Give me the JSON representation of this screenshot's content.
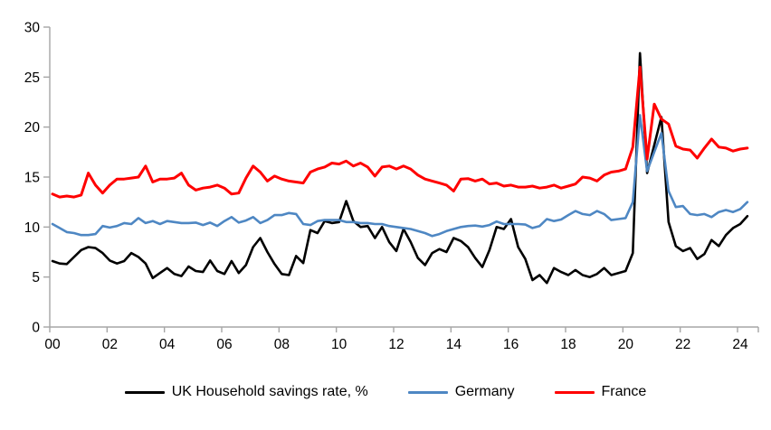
{
  "chart_data": {
    "type": "line",
    "title": "",
    "xlabel": "",
    "ylabel": "",
    "grid": false,
    "legend_position": "bottom",
    "axis_color": "#a6a6a6",
    "tick_label_color": "#000000",
    "ylim": [
      0,
      30
    ],
    "xlim": [
      2000,
      2024.6
    ],
    "yticks": [
      0,
      5,
      10,
      15,
      20,
      25,
      30
    ],
    "xticks": [
      {
        "year": 2000,
        "label": "00"
      },
      {
        "year": 2002,
        "label": "02"
      },
      {
        "year": 2004,
        "label": "04"
      },
      {
        "year": 2006,
        "label": "06"
      },
      {
        "year": 2008,
        "label": "08"
      },
      {
        "year": 2010,
        "label": "10"
      },
      {
        "year": 2012,
        "label": "12"
      },
      {
        "year": 2014,
        "label": "14"
      },
      {
        "year": 2016,
        "label": "16"
      },
      {
        "year": 2018,
        "label": "18"
      },
      {
        "year": 2020,
        "label": "20"
      },
      {
        "year": 2022,
        "label": "22"
      },
      {
        "year": 2024,
        "label": "24"
      }
    ],
    "x_start": 2000,
    "x_step": 0.25,
    "x_note": "quarterly data, 2000Q1 - 2024Q2",
    "series": [
      {
        "name": "UK Household savings rate, %",
        "color": "#000000",
        "width": 2.6,
        "values": [
          6.6,
          6.35,
          6.3,
          7.0,
          7.7,
          8.0,
          7.9,
          7.4,
          6.65,
          6.35,
          6.6,
          7.4,
          7.0,
          6.35,
          4.9,
          5.4,
          5.9,
          5.3,
          5.1,
          6.05,
          5.6,
          5.5,
          6.65,
          5.6,
          5.3,
          6.6,
          5.4,
          6.2,
          8.0,
          8.9,
          7.5,
          6.3,
          5.3,
          5.2,
          7.1,
          6.4,
          9.7,
          9.4,
          10.6,
          10.4,
          10.5,
          12.6,
          10.6,
          10.0,
          10.1,
          8.9,
          10.0,
          8.5,
          7.6,
          9.8,
          8.5,
          6.9,
          6.2,
          7.4,
          7.8,
          7.5,
          8.9,
          8.6,
          8.0,
          6.9,
          6.0,
          7.7,
          10.0,
          9.8,
          10.8,
          8.0,
          6.8,
          4.7,
          5.2,
          4.4,
          5.9,
          5.5,
          5.2,
          5.7,
          5.2,
          5.0,
          5.3,
          5.9,
          5.2,
          5.4,
          5.6,
          7.4,
          27.4,
          15.4,
          18.2,
          21.0,
          10.5,
          8.1,
          7.6,
          7.9,
          6.8,
          7.3,
          8.7,
          8.1,
          9.2,
          9.9,
          10.3,
          11.1
        ]
      },
      {
        "name": "Germany",
        "color": "#4e87c3",
        "width": 2.6,
        "values": [
          10.3,
          9.9,
          9.5,
          9.4,
          9.2,
          9.2,
          9.3,
          10.1,
          9.95,
          10.1,
          10.4,
          10.3,
          10.9,
          10.4,
          10.6,
          10.3,
          10.6,
          10.5,
          10.4,
          10.4,
          10.45,
          10.2,
          10.45,
          10.1,
          10.6,
          11.0,
          10.45,
          10.65,
          11.0,
          10.4,
          10.7,
          11.2,
          11.2,
          11.4,
          11.3,
          10.3,
          10.2,
          10.6,
          10.7,
          10.7,
          10.7,
          10.5,
          10.5,
          10.4,
          10.4,
          10.3,
          10.3,
          10.1,
          10.0,
          9.9,
          9.8,
          9.6,
          9.4,
          9.1,
          9.3,
          9.6,
          9.8,
          10.0,
          10.1,
          10.15,
          10.05,
          10.2,
          10.55,
          10.3,
          10.3,
          10.3,
          10.25,
          9.9,
          10.1,
          10.8,
          10.6,
          10.75,
          11.2,
          11.6,
          11.3,
          11.2,
          11.6,
          11.3,
          10.7,
          10.8,
          10.9,
          12.5,
          21.2,
          15.6,
          17.5,
          19.4,
          13.6,
          12.0,
          12.1,
          11.3,
          11.2,
          11.3,
          11.0,
          11.5,
          11.7,
          11.5,
          11.8,
          12.5
        ]
      },
      {
        "name": "France",
        "color": "#ff0000",
        "width": 3,
        "values": [
          13.3,
          13.0,
          13.1,
          13.0,
          13.2,
          15.4,
          14.2,
          13.4,
          14.2,
          14.8,
          14.8,
          14.9,
          15.0,
          16.1,
          14.5,
          14.8,
          14.8,
          14.9,
          15.4,
          14.2,
          13.7,
          13.9,
          14.0,
          14.2,
          13.9,
          13.3,
          13.4,
          14.9,
          16.1,
          15.5,
          14.6,
          15.1,
          14.8,
          14.6,
          14.5,
          14.4,
          15.5,
          15.8,
          16.0,
          16.4,
          16.3,
          16.6,
          16.1,
          16.4,
          16.0,
          15.1,
          16.0,
          16.1,
          15.8,
          16.1,
          15.8,
          15.2,
          14.8,
          14.6,
          14.4,
          14.2,
          13.6,
          14.8,
          14.85,
          14.6,
          14.8,
          14.3,
          14.4,
          14.1,
          14.2,
          14.0,
          14.0,
          14.1,
          13.9,
          14.0,
          14.2,
          13.9,
          14.1,
          14.3,
          15.0,
          14.9,
          14.6,
          15.2,
          15.5,
          15.6,
          15.8,
          18.0,
          26.0,
          16.8,
          22.3,
          20.8,
          20.3,
          18.1,
          17.8,
          17.7,
          16.9,
          17.9,
          18.8,
          18.0,
          17.9,
          17.6,
          17.8,
          17.9
        ]
      }
    ]
  }
}
